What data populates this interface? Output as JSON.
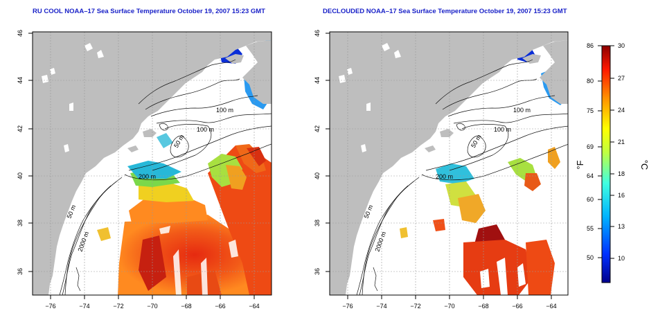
{
  "maps": [
    {
      "title": "RU COOL NOAA–17 Sea Surface Temperature October 19, 2007 15:23 GMT",
      "x_ticks": [
        "−76",
        "−74",
        "−72",
        "−70",
        "−68",
        "−66",
        "−64"
      ],
      "y_ticks": [
        "36",
        "38",
        "40",
        "42",
        "44",
        "46"
      ],
      "contour_labels": [
        "100 m",
        "100 m",
        "50 m",
        "200 m",
        "50 m",
        "2000 m"
      ]
    },
    {
      "title": "DECLOUDED NOAA–17 Sea Surface Temperature October 19, 2007 15:23 GMT",
      "x_ticks": [
        "−76",
        "−74",
        "−72",
        "−70",
        "−68",
        "−66",
        "−64"
      ],
      "y_ticks": [
        "36",
        "38",
        "40",
        "42",
        "44",
        "46"
      ],
      "contour_labels": [
        "100 m",
        "100 m",
        "50 m",
        "200 m",
        "50 m",
        "2000 m"
      ]
    }
  ],
  "colorbar": {
    "fahrenheit_label": "°F",
    "celsius_label": "°C",
    "fahrenheit_ticks": [
      "86",
      "80",
      "75",
      "69",
      "64",
      "60",
      "55",
      "50"
    ],
    "celsius_ticks": [
      "30",
      "27",
      "24",
      "21",
      "18",
      "16",
      "13",
      "10"
    ]
  },
  "colors": {
    "title": "#1a22c8",
    "land": "#bebebe",
    "ocean": "#ffffff",
    "grid": "#999999"
  }
}
